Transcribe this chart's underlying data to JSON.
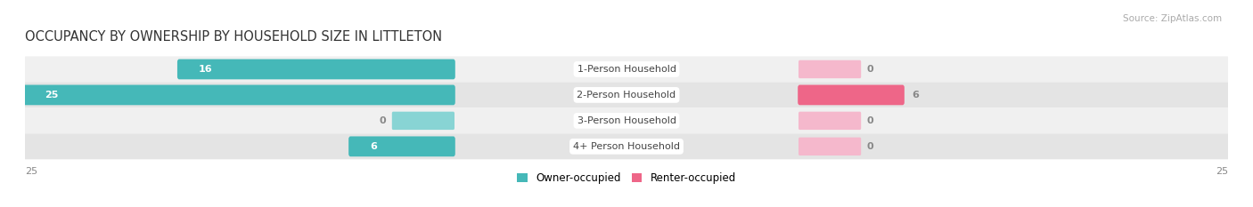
{
  "title": "OCCUPANCY BY OWNERSHIP BY HOUSEHOLD SIZE IN LITTLETON",
  "source": "Source: ZipAtlas.com",
  "categories": [
    "1-Person Household",
    "2-Person Household",
    "3-Person Household",
    "4+ Person Household"
  ],
  "owner_values": [
    16,
    25,
    0,
    6
  ],
  "renter_values": [
    0,
    6,
    0,
    0
  ],
  "owner_color": "#45b8b8",
  "renter_color": "#ee6688",
  "renter_stub_color": "#f5b8cc",
  "owner_stub_color": "#88d4d4",
  "row_bg_colors": [
    "#f0f0f0",
    "#e4e4e4",
    "#f0f0f0",
    "#e4e4e4"
  ],
  "label_bg_color": "#ffffff",
  "max_val": 25,
  "stub_val": 2.5,
  "legend_owner": "Owner-occupied",
  "legend_renter": "Renter-occupied",
  "title_fontsize": 10.5,
  "cat_fontsize": 8,
  "val_fontsize": 8,
  "tick_fontsize": 8,
  "source_fontsize": 7.5
}
